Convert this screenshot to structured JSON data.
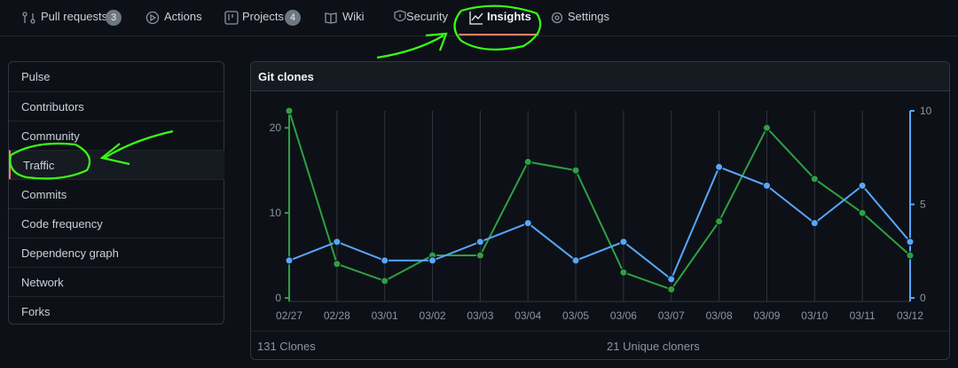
{
  "nav": {
    "tabs": [
      {
        "label": "Pull requests",
        "count": 3
      },
      {
        "label": "Actions"
      },
      {
        "label": "Projects",
        "count": 4
      },
      {
        "label": "Wiki"
      },
      {
        "label": "Security"
      },
      {
        "label": "Insights"
      },
      {
        "label": "Settings"
      }
    ]
  },
  "sidebar": {
    "items": [
      "Pulse",
      "Contributors",
      "Community",
      "Traffic",
      "Commits",
      "Code frequency",
      "Dependency graph",
      "Network",
      "Forks"
    ]
  },
  "chart_data": {
    "type": "line",
    "title": "Git clones",
    "categories": [
      "02/27",
      "02/28",
      "03/01",
      "03/02",
      "03/03",
      "03/04",
      "03/05",
      "03/06",
      "03/07",
      "03/08",
      "03/09",
      "03/10",
      "03/11",
      "03/12"
    ],
    "series": [
      {
        "color": "#2ea043",
        "values": [
          22,
          4,
          2,
          5,
          5,
          16,
          15,
          3,
          1,
          9,
          20,
          14,
          10,
          5
        ]
      },
      {
        "color": "#58a6ff",
        "axis": "y2",
        "values": [
          2,
          3,
          2,
          2,
          3,
          4,
          2,
          3,
          1,
          7,
          6,
          4,
          6,
          3
        ]
      }
    ],
    "ylim": [
      0,
      22
    ],
    "yticks": [
      0,
      10,
      20
    ],
    "y2lim": [
      0,
      10
    ],
    "y2ticks": [
      0,
      5,
      10
    ],
    "grid": true
  },
  "footer": [
    "131 Clones",
    "21 Unique cloners"
  ]
}
